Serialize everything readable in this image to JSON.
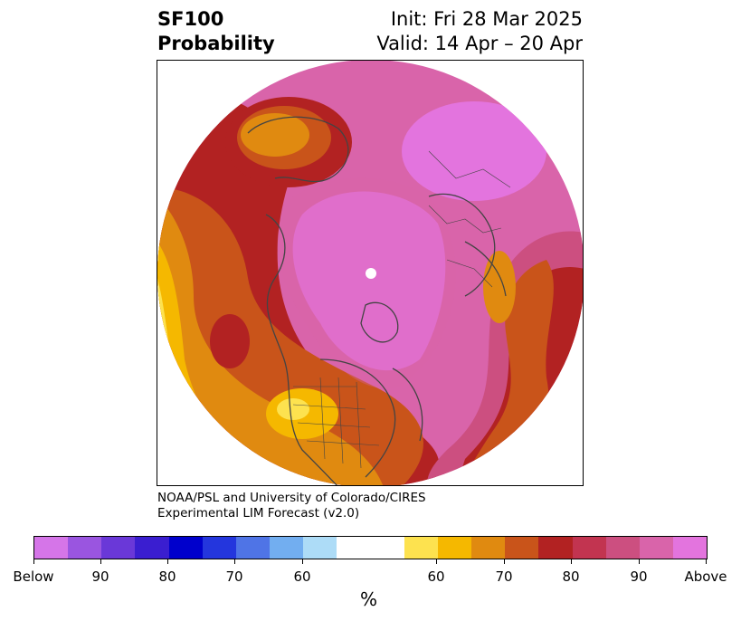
{
  "title": {
    "line1_left": "SF100",
    "line2_left": "Probability",
    "line1_right": "Init: Fri 28 Mar 2025",
    "line2_right": "Valid: 14 Apr – 20 Apr"
  },
  "credit": {
    "line1": "NOAA/PSL and University of Colorado/CIRES",
    "line2": "Experimental LIM Forecast (v2.0)"
  },
  "colorbar": {
    "unit_label": "%",
    "colors": [
      "#d575e8",
      "#9a55e0",
      "#6a38d8",
      "#3a1ed0",
      "#0000cc",
      "#2436dd",
      "#4f74e6",
      "#72aef0",
      "#addcf7",
      "#ffffff",
      "#ffffff",
      "#fde24f",
      "#f5b800",
      "#e08a10",
      "#c9541a",
      "#b22222",
      "#c23450",
      "#cc4f80",
      "#d964aa",
      "#e374de"
    ],
    "tick_labels": [
      "Below",
      "90",
      "80",
      "70",
      "60",
      "60",
      "70",
      "80",
      "90",
      "Above"
    ]
  },
  "map": {
    "projection": "north polar stereographic",
    "color_near_pole": "#e374de",
    "color_warm_high": "#b22222"
  }
}
